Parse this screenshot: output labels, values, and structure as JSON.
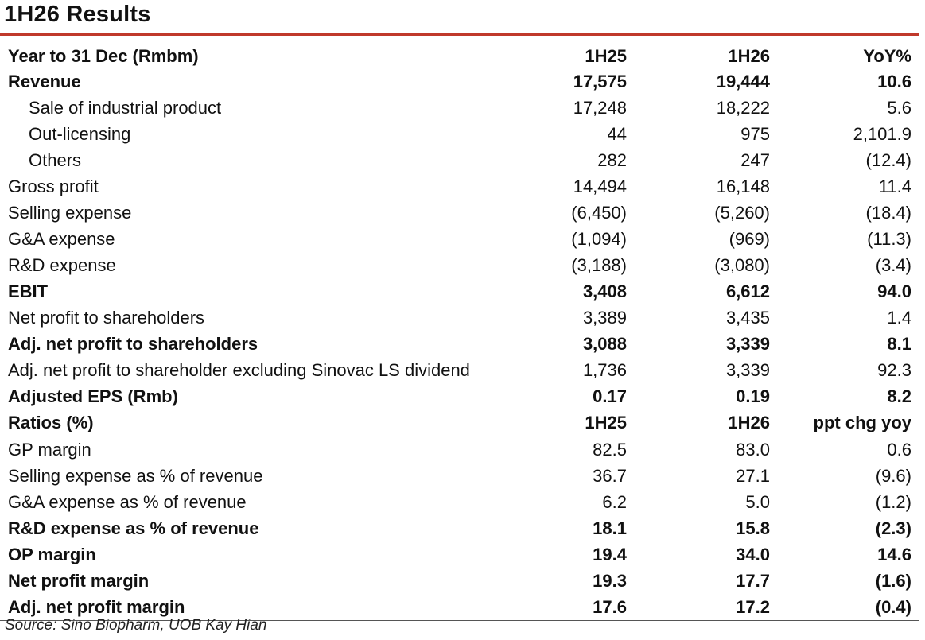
{
  "title": "1H26 Results",
  "header": {
    "label": "Year to 31 Dec (Rmbm)",
    "col1": "1H25",
    "col2": "1H26",
    "col3": "YoY%"
  },
  "rows": [
    {
      "label": "Revenue",
      "v1": "17,575",
      "v2": "19,444",
      "v3": "10.6",
      "bold": true,
      "indent": false
    },
    {
      "label": "Sale of industrial product",
      "v1": "17,248",
      "v2": "18,222",
      "v3": "5.6",
      "bold": false,
      "indent": true
    },
    {
      "label": "Out-licensing",
      "v1": "44",
      "v2": "975",
      "v3": "2,101.9",
      "bold": false,
      "indent": true
    },
    {
      "label": "Others",
      "v1": "282",
      "v2": "247",
      "v3": "(12.4)",
      "bold": false,
      "indent": true
    },
    {
      "label": "Gross profit",
      "v1": "14,494",
      "v2": "16,148",
      "v3": "11.4",
      "bold": false,
      "indent": false
    },
    {
      "label": "Selling expense",
      "v1": "(6,450)",
      "v2": "(5,260)",
      "v3": "(18.4)",
      "bold": false,
      "indent": false
    },
    {
      "label": "G&A expense",
      "v1": "(1,094)",
      "v2": "(969)",
      "v3": "(11.3)",
      "bold": false,
      "indent": false
    },
    {
      "label": "R&D expense",
      "v1": "(3,188)",
      "v2": "(3,080)",
      "v3": "(3.4)",
      "bold": false,
      "indent": false
    },
    {
      "label": "EBIT",
      "v1": "3,408",
      "v2": "6,612",
      "v3": "94.0",
      "bold": true,
      "indent": false
    },
    {
      "label": "Net profit to shareholders",
      "v1": "3,389",
      "v2": "3,435",
      "v3": "1.4",
      "bold": false,
      "indent": false
    },
    {
      "label": "Adj. net profit to shareholders",
      "v1": "3,088",
      "v2": "3,339",
      "v3": "8.1",
      "bold": true,
      "indent": false
    },
    {
      "label": "Adj. net profit to shareholder excluding Sinovac LS dividend",
      "v1": "1,736",
      "v2": "3,339",
      "v3": "92.3",
      "bold": false,
      "indent": false
    },
    {
      "label": "Adjusted EPS (Rmb)",
      "v1": "0.17",
      "v2": "0.19",
      "v3": "8.2",
      "bold": true,
      "indent": false
    }
  ],
  "ratio_header": {
    "label": "Ratios (%)",
    "col1": "1H25",
    "col2": "1H26",
    "col3": "ppt chg yoy"
  },
  "ratio_rows": [
    {
      "label": "GP margin",
      "v1": "82.5",
      "v2": "83.0",
      "v3": "0.6",
      "bold": false
    },
    {
      "label": "Selling expense as % of revenue",
      "v1": "36.7",
      "v2": "27.1",
      "v3": "(9.6)",
      "bold": false
    },
    {
      "label": "G&A expense as % of revenue",
      "v1": "6.2",
      "v2": "5.0",
      "v3": "(1.2)",
      "bold": false
    },
    {
      "label": "R&D expense as % of revenue",
      "v1": "18.1",
      "v2": "15.8",
      "v3": "(2.3)",
      "bold": true
    },
    {
      "label": "OP margin",
      "v1": "19.4",
      "v2": "34.0",
      "v3": "14.6",
      "bold": true
    },
    {
      "label": "Net profit margin",
      "v1": "19.3",
      "v2": "17.7",
      "v3": "(1.6)",
      "bold": true
    },
    {
      "label": "Adj. net profit margin",
      "v1": "17.6",
      "v2": "17.2",
      "v3": "(0.4)",
      "bold": true
    }
  ],
  "source": "Source: Sino Biopharm, UOB Kay Hian",
  "colors": {
    "accent_rule": "#c0392b"
  }
}
